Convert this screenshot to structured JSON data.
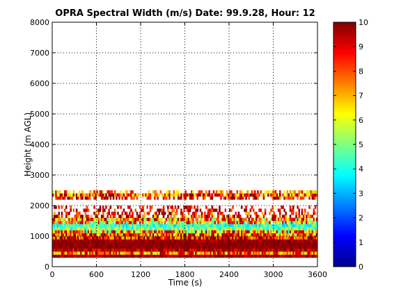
{
  "chart_data": {
    "type": "heatmap",
    "title": "OPRA Spectral Width (m/s)  Date: 99.9.28, Hour: 12",
    "xlabel": "Time (s)",
    "ylabel": "Height (m AGL)",
    "xlim": [
      0,
      3600
    ],
    "ylim": [
      0,
      8000
    ],
    "xticks": [
      0,
      600,
      1200,
      1800,
      2400,
      3000,
      3600
    ],
    "yticks": [
      0,
      1000,
      2000,
      3000,
      4000,
      5000,
      6000,
      7000,
      8000
    ],
    "xtick_labels": [
      "0",
      "600",
      "1200",
      "1800",
      "2400",
      "3000",
      "3600"
    ],
    "ytick_labels": [
      "0",
      "1000",
      "2000",
      "3000",
      "4000",
      "5000",
      "6000",
      "7000",
      "8000"
    ],
    "grid": true,
    "grid_style": "dotted",
    "colormap": "jet",
    "colorbar": {
      "range": [
        0,
        10
      ],
      "ticks": [
        0,
        1,
        2,
        3,
        4,
        5,
        6,
        7,
        8,
        9,
        10
      ],
      "tick_labels": [
        "0",
        "1",
        "2",
        "3",
        "4",
        "5",
        "6",
        "7",
        "8",
        "9",
        "10"
      ],
      "placement": "right"
    },
    "time_step_s": 20,
    "height_rows": [
      {
        "height_m": 350,
        "mean": 9.6,
        "spread": 0.4,
        "fill": 1.0
      },
      {
        "height_m": 450,
        "mean": 7.8,
        "spread": 1.4,
        "fill": 1.0
      },
      {
        "height_m": 550,
        "mean": 9.4,
        "spread": 0.6,
        "fill": 1.0
      },
      {
        "height_m": 650,
        "mean": 9.9,
        "spread": 0.2,
        "fill": 1.0
      },
      {
        "height_m": 750,
        "mean": 9.9,
        "spread": 0.2,
        "fill": 1.0
      },
      {
        "height_m": 850,
        "mean": 9.7,
        "spread": 0.3,
        "fill": 1.0
      },
      {
        "height_m": 950,
        "mean": 8.6,
        "spread": 1.2,
        "fill": 1.0
      },
      {
        "height_m": 1050,
        "mean": 7.9,
        "spread": 1.6,
        "fill": 1.0
      },
      {
        "height_m": 1150,
        "mean": 7.2,
        "spread": 1.8,
        "fill": 1.0
      },
      {
        "height_m": 1250,
        "mean": 5.0,
        "spread": 1.0,
        "fill": 1.0
      },
      {
        "height_m": 1350,
        "mean": 4.3,
        "spread": 0.7,
        "fill": 1.0
      },
      {
        "height_m": 1450,
        "mean": 6.8,
        "spread": 1.8,
        "fill": 0.95
      },
      {
        "height_m": 1550,
        "mean": 7.5,
        "spread": 1.8,
        "fill": 0.9
      },
      {
        "height_m": 1650,
        "mean": 8.6,
        "spread": 1.3,
        "fill": 0.55
      },
      {
        "height_m": 1750,
        "mean": 8.8,
        "spread": 1.2,
        "fill": 0.45
      },
      {
        "height_m": 1850,
        "mean": 9.0,
        "spread": 1.0,
        "fill": 0.35
      },
      {
        "height_m": 1950,
        "mean": 9.2,
        "spread": 0.8,
        "fill": 0.25
      },
      {
        "height_m": 2250,
        "mean": 9.0,
        "spread": 1.0,
        "fill": 0.6
      },
      {
        "height_m": 2350,
        "mean": 8.0,
        "spread": 1.4,
        "fill": 0.9
      },
      {
        "height_m": 2450,
        "mean": 7.4,
        "spread": 1.2,
        "fill": 0.5
      }
    ]
  }
}
